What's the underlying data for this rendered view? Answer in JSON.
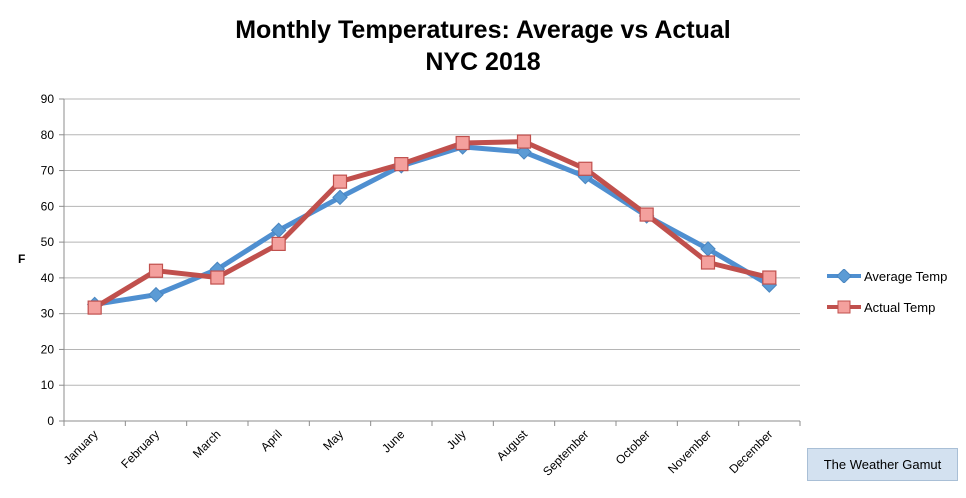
{
  "chart_data": {
    "type": "line",
    "title": "Monthly Temperatures: Average vs Actual",
    "subtitle": "NYC 2018",
    "xlabel": "",
    "ylabel": "F",
    "ylim": [
      0,
      90
    ],
    "yticks": [
      0,
      10,
      20,
      30,
      40,
      50,
      60,
      70,
      80,
      90
    ],
    "grid": true,
    "legend_position": "right",
    "categories": [
      "January",
      "February",
      "March",
      "April",
      "May",
      "June",
      "July",
      "August",
      "September",
      "October",
      "November",
      "December"
    ],
    "series": [
      {
        "name": "Average Temp",
        "color": "#4f8fd0",
        "marker": "diamond",
        "values": [
          32.6,
          35.3,
          42.4,
          53.3,
          62.5,
          71.3,
          76.6,
          75.2,
          68.3,
          57.3,
          48.1,
          38.0
        ]
      },
      {
        "name": "Actual Temp",
        "color": "#c0504d",
        "marker": "square",
        "values": [
          31.7,
          42.0,
          40.1,
          49.5,
          66.9,
          71.8,
          77.7,
          78.1,
          70.5,
          57.7,
          44.3,
          40.1
        ]
      }
    ]
  },
  "footer": {
    "badge": "The Weather Gamut"
  }
}
